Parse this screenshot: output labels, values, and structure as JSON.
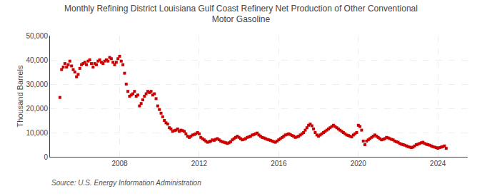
{
  "chart_data": {
    "type": "scatter",
    "title": "Monthly Refining District Louisiana Gulf Coast Refinery Net Production of Other Conventional\nMotor Gasoline",
    "y_label": "Thousand Barrels",
    "annotations": [
      "Source: U.S. Energy Information Administration"
    ],
    "color": "#cc0000",
    "marker": "square",
    "grid": true,
    "xlim": [
      2004.5,
      2025.5
    ],
    "xticks": [
      2008,
      2012,
      2016,
      2020,
      2024
    ],
    "ylim": [
      0,
      50000
    ],
    "yticks": [
      0,
      {
        "value": 10000,
        "label": "10,000"
      },
      {
        "value": 20000,
        "label": "20,000"
      },
      {
        "value": 30000,
        "label": "30,000"
      },
      {
        "value": 40000,
        "label": "40,000"
      },
      {
        "value": 50000,
        "label": "50,000"
      }
    ],
    "x": [
      2005.0,
      2005.083,
      2005.167,
      2005.25,
      2005.333,
      2005.417,
      2005.5,
      2005.583,
      2005.667,
      2005.75,
      2005.833,
      2005.917,
      2006.0,
      2006.083,
      2006.167,
      2006.25,
      2006.333,
      2006.417,
      2006.5,
      2006.583,
      2006.667,
      2006.75,
      2006.833,
      2006.917,
      2007.0,
      2007.083,
      2007.167,
      2007.25,
      2007.333,
      2007.417,
      2007.5,
      2007.583,
      2007.667,
      2007.75,
      2007.833,
      2007.917,
      2008.0,
      2008.083,
      2008.167,
      2008.25,
      2008.333,
      2008.417,
      2008.5,
      2008.583,
      2008.667,
      2008.75,
      2008.833,
      2008.917,
      2009.0,
      2009.083,
      2009.167,
      2009.25,
      2009.333,
      2009.417,
      2009.5,
      2009.583,
      2009.667,
      2009.75,
      2009.833,
      2009.917,
      2010.0,
      2010.083,
      2010.167,
      2010.25,
      2010.333,
      2010.417,
      2010.5,
      2010.583,
      2010.667,
      2010.75,
      2010.833,
      2010.917,
      2011.0,
      2011.083,
      2011.167,
      2011.25,
      2011.333,
      2011.417,
      2011.5,
      2011.583,
      2011.667,
      2011.75,
      2011.833,
      2011.917,
      2012.0,
      2012.083,
      2012.167,
      2012.25,
      2012.333,
      2012.417,
      2012.5,
      2012.583,
      2012.667,
      2012.75,
      2012.833,
      2012.917,
      2013.0,
      2013.083,
      2013.167,
      2013.25,
      2013.333,
      2013.417,
      2013.5,
      2013.583,
      2013.667,
      2013.75,
      2013.833,
      2013.917,
      2014.0,
      2014.083,
      2014.167,
      2014.25,
      2014.333,
      2014.417,
      2014.5,
      2014.583,
      2014.667,
      2014.75,
      2014.833,
      2014.917,
      2015.0,
      2015.083,
      2015.167,
      2015.25,
      2015.333,
      2015.417,
      2015.5,
      2015.583,
      2015.667,
      2015.75,
      2015.833,
      2015.917,
      2016.0,
      2016.083,
      2016.167,
      2016.25,
      2016.333,
      2016.417,
      2016.5,
      2016.583,
      2016.667,
      2016.75,
      2016.833,
      2016.917,
      2017.0,
      2017.083,
      2017.167,
      2017.25,
      2017.333,
      2017.417,
      2017.5,
      2017.583,
      2017.667,
      2017.75,
      2017.833,
      2017.917,
      2018.0,
      2018.083,
      2018.167,
      2018.25,
      2018.333,
      2018.417,
      2018.5,
      2018.583,
      2018.667,
      2018.75,
      2018.833,
      2018.917,
      2019.0,
      2019.083,
      2019.167,
      2019.25,
      2019.333,
      2019.417,
      2019.5,
      2019.583,
      2019.667,
      2019.75,
      2019.833,
      2019.917,
      2020.0,
      2020.083,
      2020.167,
      2020.25,
      2020.333,
      2020.417,
      2020.5,
      2020.583,
      2020.667,
      2020.75,
      2020.833,
      2020.917,
      2021.0,
      2021.083,
      2021.167,
      2021.25,
      2021.333,
      2021.417,
      2021.5,
      2021.583,
      2021.667,
      2021.75,
      2021.833,
      2021.917,
      2022.0,
      2022.083,
      2022.167,
      2022.25,
      2022.333,
      2022.417,
      2022.5,
      2022.583,
      2022.667,
      2022.75,
      2022.833,
      2022.917,
      2023.0,
      2023.083,
      2023.167,
      2023.25,
      2023.333,
      2023.417,
      2023.5,
      2023.583,
      2023.667,
      2023.75,
      2023.833,
      2023.917,
      2024.0,
      2024.083,
      2024.167,
      2024.25,
      2024.333,
      2024.417
    ],
    "values": [
      24500,
      36000,
      37000,
      38500,
      37000,
      38000,
      39500,
      37500,
      36000,
      35000,
      33000,
      34000,
      36500,
      38000,
      38500,
      39000,
      38000,
      39500,
      40000,
      38500,
      37000,
      38500,
      38000,
      39500,
      40000,
      39000,
      38500,
      39500,
      40000,
      39500,
      41000,
      40500,
      39000,
      38000,
      39000,
      40500,
      41500,
      39500,
      38000,
      34500,
      30000,
      27000,
      25000,
      25500,
      26000,
      27000,
      25000,
      25500,
      21000,
      22000,
      23500,
      25000,
      26000,
      27000,
      26500,
      27000,
      25500,
      26000,
      24000,
      21000,
      19500,
      18000,
      16500,
      15000,
      14000,
      13500,
      12000,
      11500,
      10500,
      10800,
      11000,
      11500,
      10500,
      11000,
      10800,
      10500,
      9500,
      8500,
      8000,
      8500,
      9000,
      9200,
      9500,
      10000,
      9500,
      8000,
      7500,
      7000,
      6500,
      6000,
      6200,
      6500,
      7000,
      6800,
      7200,
      7500,
      7000,
      6500,
      6200,
      6000,
      5800,
      5500,
      5800,
      6200,
      7000,
      7500,
      8000,
      8500,
      8000,
      7500,
      7000,
      7200,
      7500,
      8000,
      8200,
      8500,
      9000,
      9200,
      9500,
      9800,
      9000,
      8500,
      8000,
      7800,
      7500,
      7200,
      7000,
      6800,
      6500,
      6200,
      6000,
      6500,
      7000,
      7500,
      8000,
      8500,
      9000,
      9200,
      9500,
      9200,
      8800,
      8500,
      8000,
      8200,
      8500,
      9000,
      9500,
      10000,
      11000,
      12000,
      13000,
      13500,
      12800,
      11500,
      10000,
      9000,
      8500,
      9000,
      9500,
      10000,
      10500,
      11000,
      11500,
      12000,
      12500,
      13000,
      12500,
      12000,
      11500,
      11000,
      10500,
      10000,
      9500,
      9000,
      8800,
      8500,
      8200,
      9000,
      9500,
      10000,
      13000,
      12500,
      11000,
      6500,
      5000,
      6500,
      7000,
      7500,
      8000,
      8500,
      9000,
      8500,
      8000,
      7500,
      7000,
      7200,
      7500,
      8000,
      7800,
      7500,
      7200,
      7000,
      6500,
      6200,
      6000,
      5500,
      5200,
      5000,
      4800,
      4500,
      4200,
      4000,
      3800,
      4000,
      4500,
      5000,
      5200,
      5500,
      5800,
      6000,
      5500,
      5200,
      5000,
      4800,
      4500,
      4200,
      4000,
      3800,
      3500,
      3800,
      4000,
      4200,
      4500,
      3500
    ]
  }
}
